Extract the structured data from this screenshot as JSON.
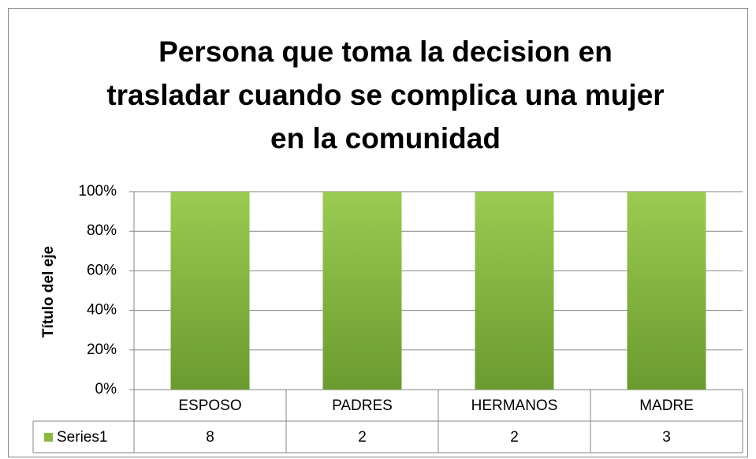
{
  "chart_data": {
    "type": "bar",
    "stacking": "percent",
    "title": "Persona que toma la decision en trasladar cuando se complica una mujer en la comunidad",
    "y_label": "Título del eje",
    "categories": [
      "ESPOSO",
      "PADRES",
      "HERMANOS",
      "MADRE"
    ],
    "series": [
      {
        "name": "Series1",
        "color": "#8cb842",
        "values": [
          8,
          2,
          2,
          3
        ]
      }
    ],
    "ylim": [
      0,
      100
    ],
    "yticks": [
      {
        "value": 0,
        "label": "0%"
      },
      {
        "value": 20,
        "label": "20%"
      },
      {
        "value": 40,
        "label": "40%"
      },
      {
        "value": 60,
        "label": "60%"
      },
      {
        "value": 80,
        "label": "80%"
      },
      {
        "value": 100,
        "label": "100%"
      }
    ],
    "grid": true
  }
}
